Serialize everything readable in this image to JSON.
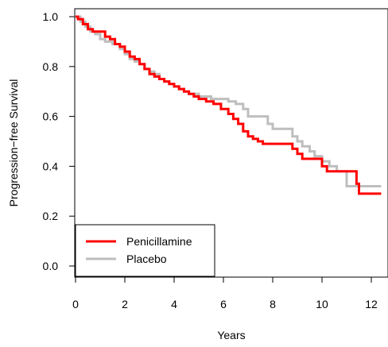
{
  "chart_data": {
    "type": "line",
    "subtype": "kaplan-meier step curve",
    "title": "",
    "xlabel": "Years",
    "ylabel": "Progression−free Survival",
    "xlim": [
      0,
      12.4
    ],
    "ylim": [
      0,
      1.0
    ],
    "x_ticks": [
      "0",
      "2",
      "4",
      "6",
      "8",
      "10",
      "12"
    ],
    "y_ticks": [
      "0.0",
      "0.2",
      "0.4",
      "0.6",
      "0.8",
      "1.0"
    ],
    "grid": false,
    "legend_position": "bottom-left",
    "series": [
      {
        "name": "Penicillamine",
        "color": "#ff0000",
        "x": [
          0,
          0.1,
          0.3,
          0.5,
          0.7,
          1.2,
          1.4,
          1.6,
          1.8,
          2.0,
          2.2,
          2.4,
          2.6,
          2.8,
          3.0,
          3.2,
          3.4,
          3.6,
          3.8,
          4.0,
          4.2,
          4.4,
          4.6,
          4.8,
          5.0,
          5.3,
          5.6,
          5.9,
          6.2,
          6.4,
          6.6,
          6.8,
          7.0,
          7.2,
          7.4,
          7.6,
          8.0,
          8.5,
          8.8,
          9.0,
          9.2,
          9.4,
          9.7,
          10.0,
          10.2,
          11.3,
          11.4,
          11.5,
          12.4
        ],
        "y": [
          1.0,
          0.99,
          0.97,
          0.95,
          0.94,
          0.92,
          0.91,
          0.89,
          0.88,
          0.86,
          0.84,
          0.83,
          0.81,
          0.79,
          0.77,
          0.76,
          0.75,
          0.74,
          0.73,
          0.72,
          0.71,
          0.7,
          0.69,
          0.68,
          0.67,
          0.66,
          0.65,
          0.63,
          0.61,
          0.59,
          0.57,
          0.54,
          0.52,
          0.51,
          0.5,
          0.49,
          0.49,
          0.49,
          0.47,
          0.45,
          0.43,
          0.43,
          0.43,
          0.4,
          0.38,
          0.38,
          0.33,
          0.29,
          0.29
        ]
      },
      {
        "name": "Placebo",
        "color": "#bebebe",
        "x": [
          0,
          0.2,
          0.4,
          0.6,
          0.8,
          1.0,
          1.2,
          1.5,
          1.8,
          2.0,
          2.2,
          2.4,
          2.6,
          2.8,
          3.0,
          3.2,
          3.4,
          3.6,
          3.8,
          4.0,
          4.2,
          4.4,
          4.6,
          5.0,
          5.5,
          6.0,
          6.2,
          6.5,
          6.8,
          7.0,
          7.3,
          7.6,
          7.8,
          8.0,
          8.5,
          8.8,
          9.0,
          9.2,
          9.5,
          9.7,
          10.0,
          10.3,
          10.6,
          11.0,
          12.4
        ],
        "y": [
          1.0,
          0.98,
          0.96,
          0.94,
          0.93,
          0.91,
          0.9,
          0.89,
          0.87,
          0.85,
          0.83,
          0.82,
          0.81,
          0.79,
          0.78,
          0.77,
          0.75,
          0.74,
          0.73,
          0.72,
          0.71,
          0.7,
          0.69,
          0.68,
          0.67,
          0.67,
          0.66,
          0.65,
          0.63,
          0.6,
          0.6,
          0.6,
          0.57,
          0.55,
          0.55,
          0.52,
          0.5,
          0.48,
          0.46,
          0.44,
          0.42,
          0.4,
          0.38,
          0.32,
          0.32
        ]
      }
    ]
  }
}
